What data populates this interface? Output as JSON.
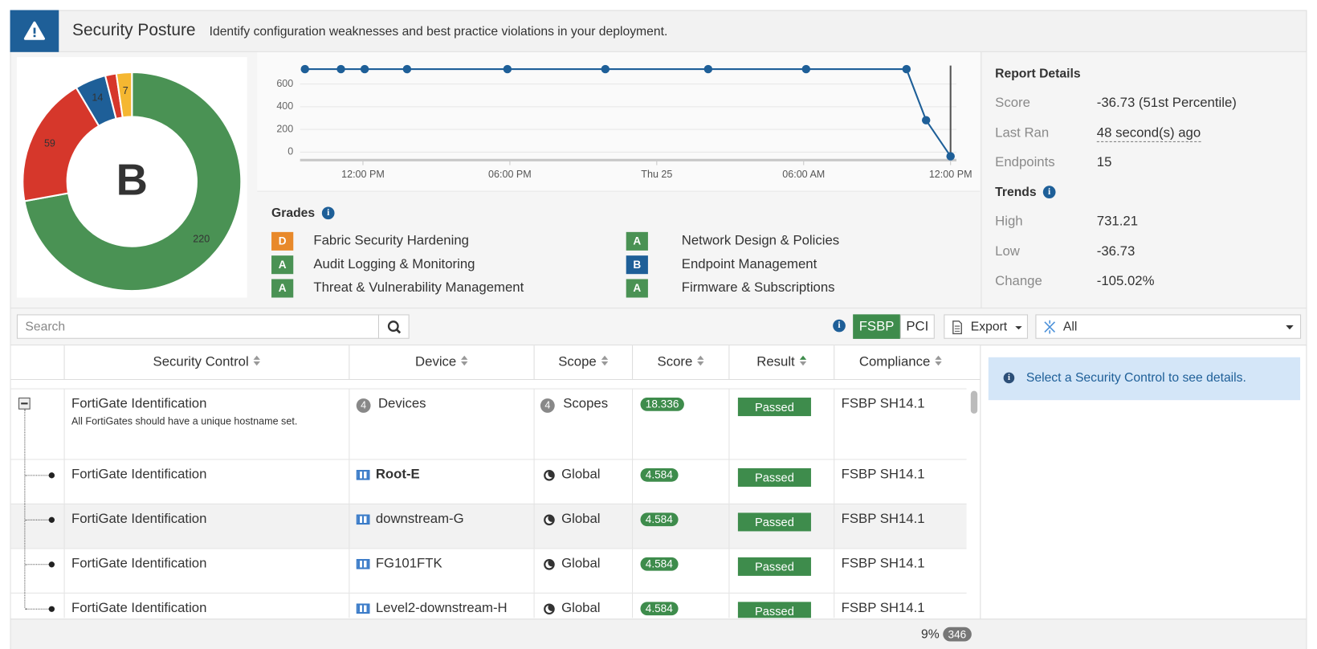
{
  "header": {
    "title": "Security Posture",
    "subtitle": "Identify configuration weaknesses and best practice violations in your deployment."
  },
  "chart_data": [
    {
      "type": "pie",
      "donut": true,
      "center_label": "B",
      "values": [
        220,
        59,
        14,
        5,
        7
      ],
      "colors": [
        "#4a9254",
        "#d6372b",
        "#1e5f98",
        "#d6372b",
        "#f5b731"
      ]
    },
    {
      "type": "line",
      "x": [
        9.63,
        11.1,
        12.07,
        13.8,
        17.9,
        21.9,
        26.1,
        30.1,
        34.2,
        35.0,
        36.0
      ],
      "series": [
        {
          "values": [
            731.21,
            731.21,
            731.21,
            731.21,
            731.21,
            731.21,
            731.21,
            731.21,
            731.21,
            281,
            -36.73
          ],
          "color": "#1e5f98"
        }
      ],
      "xlim": [
        9.43,
        36.24
      ],
      "ylim": [
        -70,
        770
      ],
      "xticks": [
        {
          "value": 12,
          "label": "12:00 PM"
        },
        {
          "value": 18,
          "label": "06:00 PM"
        },
        {
          "value": 24,
          "label": "Thu 25"
        },
        {
          "value": 30,
          "label": "06:00 AM"
        },
        {
          "value": 36,
          "label": "12:00 PM"
        }
      ],
      "yticks": [
        0,
        200,
        400,
        600
      ],
      "grid": true
    }
  ],
  "grades": {
    "title": "Grades",
    "items": [
      {
        "grade": "D",
        "name": "Fabric Security Hardening",
        "color": "#e8892a"
      },
      {
        "grade": "A",
        "name": "Audit Logging & Monitoring",
        "color": "#4a9254"
      },
      {
        "grade": "A",
        "name": "Threat & Vulnerability Management",
        "color": "#4a9254"
      },
      {
        "grade": "A",
        "name": "Network Design & Policies",
        "color": "#4a9254"
      },
      {
        "grade": "B",
        "name": "Endpoint Management",
        "color": "#1e5f98"
      },
      {
        "grade": "A",
        "name": "Firmware & Subscriptions",
        "color": "#4a9254"
      }
    ]
  },
  "report": {
    "title": "Report Details",
    "rows": [
      {
        "label": "Score",
        "value": "-36.73 (51st Percentile)"
      },
      {
        "label": "Last Ran",
        "value": "48 second(s) ago"
      },
      {
        "label": "Endpoints",
        "value": 15
      }
    ],
    "trends_title": "Trends",
    "trends": [
      {
        "label": "High",
        "value": 731.21
      },
      {
        "label": "Low",
        "value": -36.73
      },
      {
        "label": "Change",
        "value": "-105.02%"
      }
    ]
  },
  "toolbar": {
    "search_placeholder": "Search",
    "standards": [
      {
        "label": "FSBP",
        "active": true
      },
      {
        "label": "PCI",
        "active": false
      }
    ],
    "export": "Export",
    "filter": "All"
  },
  "table": {
    "columns": [
      "Security Control",
      "Device",
      "Scope",
      "Score",
      "Result",
      "Compliance"
    ],
    "rows": [
      {
        "control": "FortiGate Identification",
        "description": "All FortiGates should have a unique hostname set.",
        "device_count": 4,
        "device": "Devices",
        "scope_count": 4,
        "scope": "Scopes",
        "score": 18.336,
        "result": "Passed",
        "compliance": "FSBP SH14.1"
      },
      {
        "control": "FortiGate Identification",
        "device": "Root-E",
        "device_bold": true,
        "scope": "Global",
        "score": 4.584,
        "result": "Passed",
        "compliance": "FSBP SH14.1"
      },
      {
        "control": "FortiGate Identification",
        "device": "downstream-G",
        "scope": "Global",
        "score": 4.584,
        "result": "Passed",
        "compliance": "FSBP SH14.1"
      },
      {
        "control": "FortiGate Identification",
        "device": "FG101FTK",
        "scope": "Global",
        "score": 4.584,
        "result": "Passed",
        "compliance": "FSBP SH14.1"
      },
      {
        "control": "FortiGate Identification",
        "device": "Level2-downstream-H",
        "scope": "Global",
        "score": 4.584,
        "result": "Passed",
        "compliance": "FSBP SH14.1"
      }
    ]
  },
  "details": {
    "message": "Select a Security Control to see details."
  },
  "footer": {
    "progress": "9%",
    "count": 346
  }
}
